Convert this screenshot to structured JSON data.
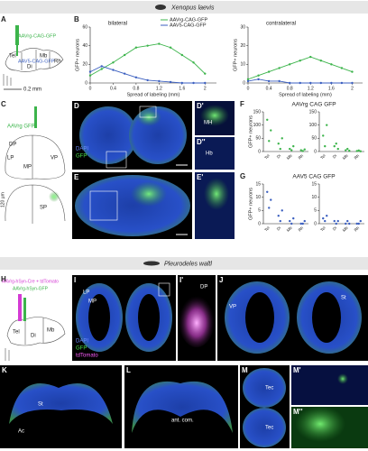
{
  "banners": [
    "Xenopus laevis",
    "Pleurodeles waltl"
  ],
  "panel_labels": [
    "A",
    "B",
    "C",
    "D",
    "D'",
    "D''",
    "E",
    "E'",
    "F",
    "G",
    "H",
    "I",
    "I'",
    "J",
    "K",
    "L",
    "M",
    "M'",
    "M''"
  ],
  "texts": [
    "AAVrg-CAG-GFP",
    "AAV5-CAG-GFP",
    "Tel",
    "Di",
    "Mb",
    "Rh",
    "0.2 mm",
    "AAVrg GFP",
    "DP",
    "LP",
    "VP",
    "MP",
    "SP",
    "120 µm",
    "DAPI",
    "GFP",
    "Hb",
    "MH",
    "AAVrg-hSyn-Cre + tdTomato",
    "AAVrg-hSyn-GFP",
    "tdTomato",
    "DP",
    "LP",
    "MP",
    "St",
    "VP",
    "Ac",
    "ant. com.",
    "Tec"
  ],
  "chart_data": [
    {
      "type": "line",
      "title": "bilateral",
      "ylabel": "GFP+ neurons",
      "xlabel": "Spread of labeling (mm)",
      "x": [
        0,
        0.2,
        0.4,
        0.6,
        0.8,
        1,
        1.2,
        1.4,
        1.6,
        1.8,
        2
      ],
      "xlim": [
        0,
        2.2
      ],
      "xticks": [
        0,
        0.4,
        0.8,
        1.2,
        1.6,
        2
      ],
      "ylim": [
        0,
        60
      ],
      "yticks": [
        0,
        20,
        40,
        60
      ],
      "series": [
        {
          "name": "AAVrg-CAG-GFP",
          "color": "#3cb44b",
          "values": [
            8,
            15,
            22,
            30,
            38,
            40,
            42,
            38,
            30,
            22,
            10
          ]
        },
        {
          "name": "AAV5-CAG-GFP",
          "color": "#3b5fc0",
          "values": [
            12,
            18,
            14,
            10,
            6,
            3,
            2,
            1,
            0,
            0,
            0
          ]
        }
      ]
    },
    {
      "type": "line",
      "title": "contralateral",
      "ylabel": "GFP+ neurons",
      "xlabel": "Spread of labeling (mm)",
      "x": [
        0,
        0.2,
        0.4,
        0.6,
        0.8,
        1,
        1.2,
        1.4,
        1.6,
        1.8,
        2
      ],
      "xlim": [
        0,
        2.2
      ],
      "xticks": [
        0,
        0.4,
        0.8,
        1.2,
        1.6,
        2
      ],
      "ylim": [
        0,
        30
      ],
      "yticks": [
        0,
        10,
        20,
        30
      ],
      "series": [
        {
          "color": "#3cb44b",
          "values": [
            2,
            4,
            6,
            8,
            10,
            12,
            14,
            12,
            10,
            8,
            6
          ]
        },
        {
          "color": "#3b5fc0",
          "values": [
            1,
            2,
            1,
            1,
            0,
            0,
            0,
            0,
            0,
            0,
            0
          ]
        }
      ]
    },
    {
      "type": "strip",
      "title": "AAVrg CAG GFP",
      "ylabel": "GFP+ neurons",
      "color": "#3cb44b",
      "categories": [
        "Tel",
        "Di",
        "Mb",
        "Rh"
      ],
      "values": [
        [
          120,
          40,
          80
        ],
        [
          30,
          10,
          50
        ],
        [
          10,
          5,
          20
        ],
        [
          5,
          2,
          8
        ]
      ],
      "ylim": [
        0,
        150
      ],
      "yticks": [
        0,
        50,
        100,
        150
      ]
    },
    {
      "type": "strip",
      "color": "#3cb44b",
      "categories": [
        "Tel",
        "Di",
        "Mb",
        "Rh"
      ],
      "values": [
        [
          60,
          20,
          100
        ],
        [
          20,
          30,
          10
        ],
        [
          5,
          10,
          3
        ],
        [
          2,
          4,
          1
        ]
      ],
      "ylim": [
        0,
        150
      ],
      "yticks": [
        0,
        50,
        100,
        150
      ]
    },
    {
      "type": "strip",
      "title": "AAV5 CAG GFP",
      "ylabel": "GFP+ neurons",
      "color": "#3b5fc0",
      "categories": [
        "Tel",
        "Di",
        "Mb",
        "Rh"
      ],
      "values": [
        [
          12,
          6,
          9
        ],
        [
          3,
          1,
          5
        ],
        [
          1,
          0,
          2
        ],
        [
          0,
          0,
          1
        ]
      ],
      "ylim": [
        0,
        15
      ],
      "yticks": [
        0,
        5,
        10,
        15
      ]
    },
    {
      "type": "strip",
      "color": "#3b5fc0",
      "categories": [
        "Tel",
        "Di",
        "Mb",
        "Rh"
      ],
      "values": [
        [
          2,
          1,
          3
        ],
        [
          1,
          0,
          1
        ],
        [
          0,
          1,
          0
        ],
        [
          0,
          0,
          1
        ]
      ],
      "ylim": [
        0,
        15
      ],
      "yticks": [
        0,
        5,
        10,
        15
      ]
    }
  ]
}
